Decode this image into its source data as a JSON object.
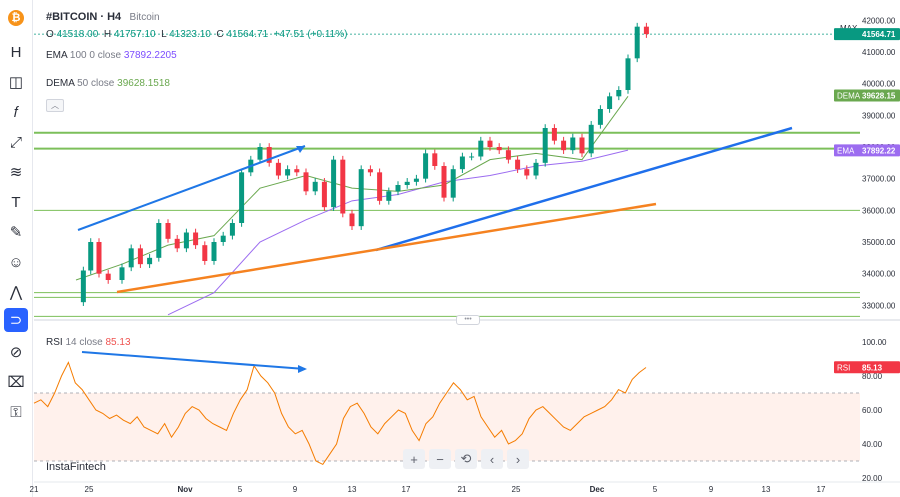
{
  "header": {
    "symbol": "#BITCOIN · H4",
    "name": "Bitcoin",
    "ohlc": {
      "o_label": "O",
      "o": "41518.00",
      "h_label": "H",
      "h": "41757.10",
      "l_label": "L",
      "l": "41323.10",
      "c_label": "C",
      "c": "41564.71",
      "change": "+47.51 (+0.11%)"
    },
    "ema_name": "EMA",
    "ema_params": "100 0 close",
    "ema_value": "37892.2205",
    "dema_name": "DEMA",
    "dema_params": "50 close",
    "dema_value": "39628.1518",
    "collapse_icon": "chevron-up-icon"
  },
  "rsi_legend": {
    "name": "RSI",
    "params": "14 close",
    "value": "85.13"
  },
  "brand": "InstaFintech",
  "colors": {
    "up": "#089981",
    "down": "#f23645",
    "ema": "#9c6cf0",
    "dema": "#6aa84f",
    "level": "#7cbf5a",
    "rsi": "#f57c00",
    "arrow": "#1f77e6",
    "trend": "#1f6feb",
    "support": "#f58220"
  },
  "toolbar": [
    "bitcoin-logo-icon",
    "h-key-icon",
    "cursor-icon",
    "fx-icon",
    "cross-icon",
    "brush-icon",
    "text-icon",
    "ruler-icon",
    "emoji-icon",
    "pattern-icon",
    "magnet-icon",
    "eye-icon",
    "delete-all-icon",
    "lock-icon"
  ],
  "nav_buttons": [
    "+",
    "−",
    "⟲",
    "‹",
    "›"
  ],
  "chart_data": [
    {
      "type": "line",
      "title": "#BITCOIN · H4",
      "ylim": [
        32600,
        42200
      ],
      "price_ticks": [
        "42000.00",
        "41000.00",
        "40000.00",
        "39000.00",
        "38000.00",
        "37000.00",
        "36000.00",
        "35000.00",
        "34000.00",
        "33000.00"
      ],
      "x_ticks": [
        "21",
        "25",
        "Nov",
        "5",
        "9",
        "13",
        "17",
        "21",
        "25",
        "Dec",
        "5",
        "9",
        "13",
        "17"
      ],
      "max_label": "MAX",
      "price_tag": {
        "label": "",
        "value": "41564.71"
      },
      "dema_tag": {
        "label": "DEMA",
        "value": "39628.15"
      },
      "ema_tag": {
        "label": "EMA",
        "value": "37892.22"
      },
      "levels": [
        38450,
        37950,
        36000,
        33400,
        33250,
        32650
      ],
      "price_path": [
        [
          0.0,
          33100
        ],
        [
          0.8,
          34100
        ],
        [
          1.6,
          35000
        ],
        [
          2.5,
          34000
        ],
        [
          3.5,
          33800
        ],
        [
          5,
          34200
        ],
        [
          6,
          34800
        ],
        [
          7,
          34300
        ],
        [
          8,
          34500
        ],
        [
          9,
          35600
        ],
        [
          10,
          35100
        ],
        [
          11,
          34800
        ],
        [
          12,
          35300
        ],
        [
          13,
          34900
        ],
        [
          14,
          34400
        ],
        [
          15,
          35000
        ],
        [
          16,
          35200
        ],
        [
          17,
          35600
        ],
        [
          18,
          37200
        ],
        [
          19,
          37600
        ],
        [
          20,
          38000
        ],
        [
          21,
          37500
        ],
        [
          22,
          37100
        ],
        [
          23,
          37300
        ],
        [
          24,
          37200
        ],
        [
          25,
          36600
        ],
        [
          26,
          36900
        ],
        [
          27,
          36100
        ],
        [
          28,
          37600
        ],
        [
          29,
          35900
        ],
        [
          30,
          35500
        ],
        [
          31,
          37300
        ],
        [
          32,
          37200
        ],
        [
          33,
          36300
        ],
        [
          34,
          36600
        ],
        [
          35,
          36800
        ],
        [
          36,
          36900
        ],
        [
          37,
          37000
        ],
        [
          38,
          37800
        ],
        [
          39,
          37400
        ],
        [
          40,
          36400
        ],
        [
          41,
          37300
        ],
        [
          42,
          37700
        ],
        [
          43,
          37700
        ],
        [
          44,
          38200
        ],
        [
          45,
          38000
        ],
        [
          46,
          37900
        ],
        [
          47,
          37600
        ],
        [
          48,
          37300
        ],
        [
          49,
          37100
        ],
        [
          50,
          37500
        ],
        [
          51,
          38600
        ],
        [
          52,
          38200
        ],
        [
          53,
          37900
        ],
        [
          54,
          38300
        ],
        [
          55,
          37800
        ],
        [
          56,
          38700
        ],
        [
          57,
          39200
        ],
        [
          58,
          39600
        ],
        [
          59,
          39800
        ],
        [
          60,
          40800
        ],
        [
          61,
          41800
        ],
        [
          62,
          41565
        ]
      ],
      "ema_path": [
        [
          10,
          32700
        ],
        [
          15,
          33400
        ],
        [
          20,
          35000
        ],
        [
          25,
          35700
        ],
        [
          30,
          36300
        ],
        [
          35,
          36500
        ],
        [
          40,
          36900
        ],
        [
          45,
          37100
        ],
        [
          50,
          37400
        ],
        [
          55,
          37550
        ],
        [
          60,
          37900
        ]
      ],
      "dema_path": [
        [
          0,
          33800
        ],
        [
          5,
          34300
        ],
        [
          10,
          34900
        ],
        [
          15,
          35200
        ],
        [
          20,
          36700
        ],
        [
          25,
          37100
        ],
        [
          30,
          36700
        ],
        [
          35,
          36600
        ],
        [
          40,
          36800
        ],
        [
          45,
          37600
        ],
        [
          50,
          37800
        ],
        [
          55,
          37600
        ],
        [
          60,
          39600
        ]
      ]
    },
    {
      "type": "line",
      "title": "RSI",
      "ylim": [
        20,
        100
      ],
      "ticks": [
        "100.00",
        "80.00",
        "60.00",
        "40.00",
        "20.00"
      ],
      "tag": {
        "label": "RSI",
        "value": "85.13"
      },
      "band": [
        70,
        30
      ],
      "values": [
        64,
        66,
        62,
        70,
        80,
        88,
        76,
        72,
        66,
        60,
        58,
        55,
        57,
        54,
        52,
        56,
        50,
        48,
        46,
        52,
        44,
        50,
        58,
        62,
        60,
        55,
        52,
        50,
        48,
        58,
        66,
        72,
        86,
        80,
        76,
        70,
        58,
        50,
        46,
        48,
        40,
        30,
        28,
        34,
        40,
        55,
        62,
        64,
        58,
        50,
        46,
        52,
        56,
        60,
        58,
        48,
        42,
        52,
        56,
        64,
        70,
        76,
        72,
        66,
        68,
        56,
        50,
        44,
        48,
        40,
        42,
        46,
        55,
        60,
        62,
        58,
        54,
        50,
        48,
        52,
        56,
        58,
        60,
        62,
        66,
        72,
        70,
        78,
        82,
        85
      ]
    }
  ]
}
